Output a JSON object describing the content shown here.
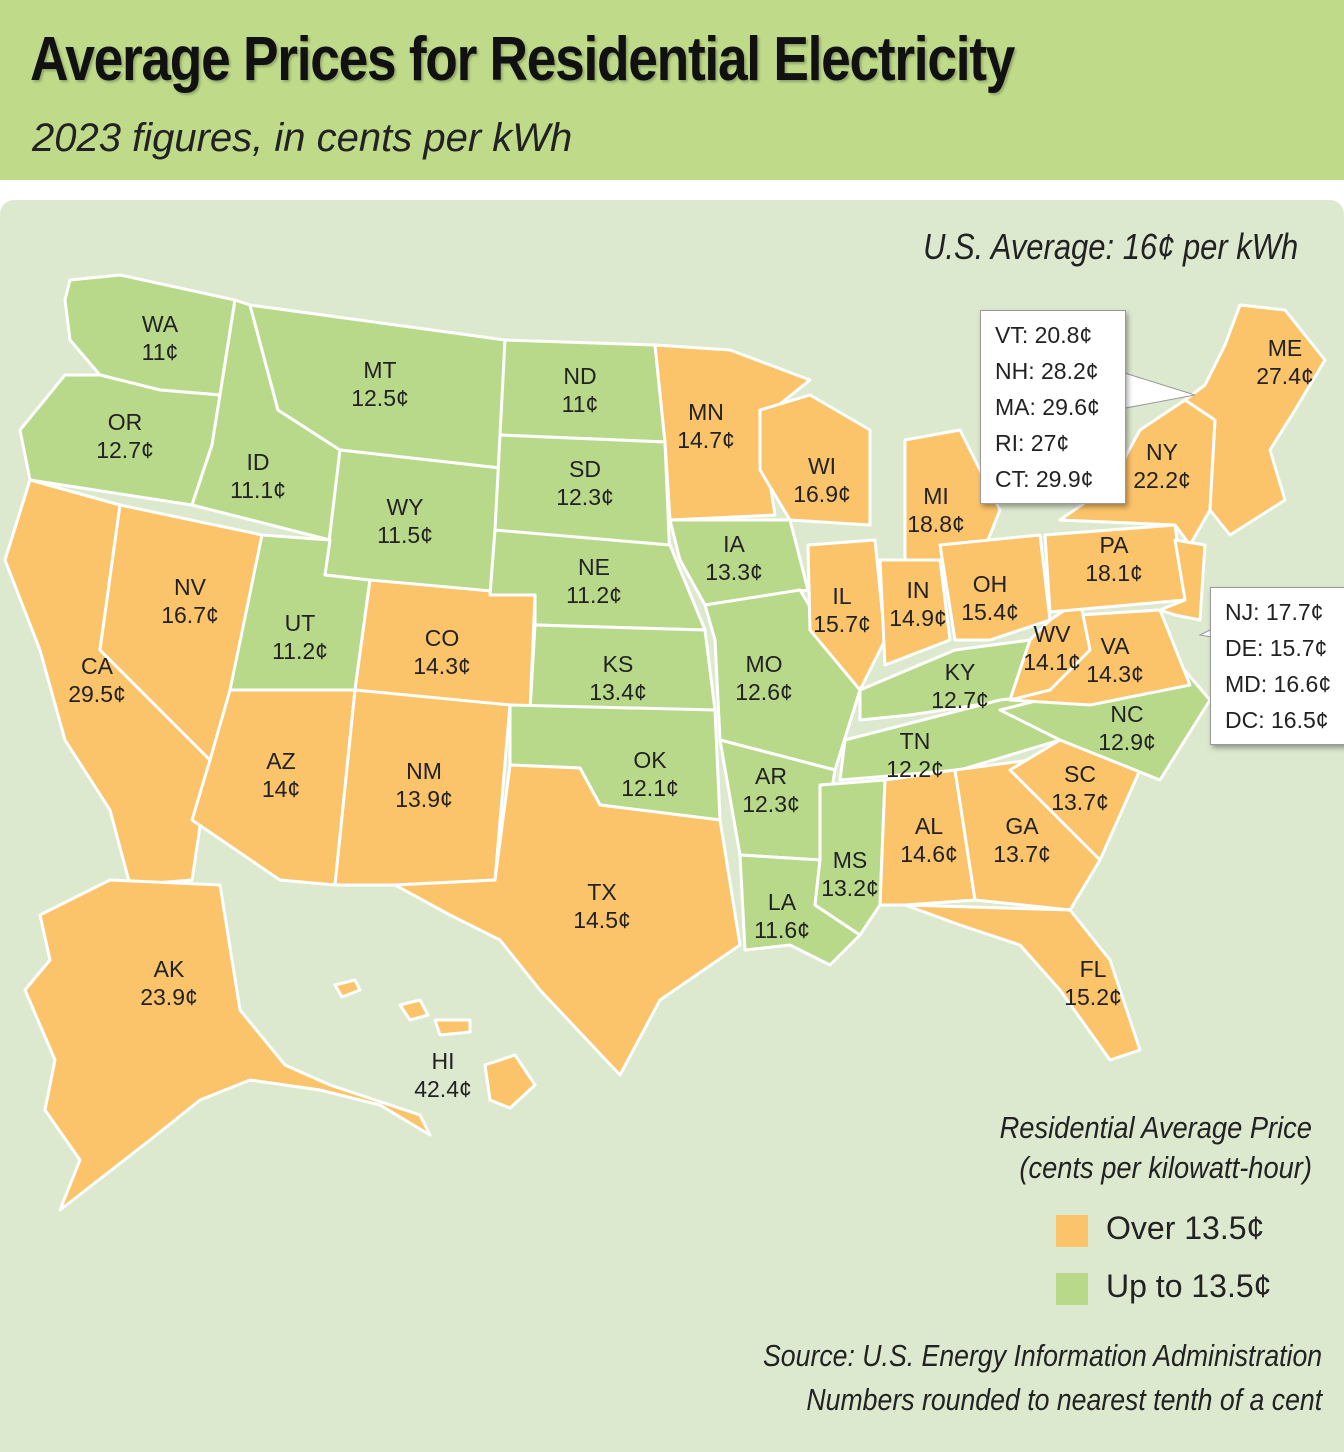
{
  "header": {
    "title": "Average Prices for Residential Electricity",
    "subtitle": "2023 figures, in cents per kWh"
  },
  "us_average": "U.S. Average: 16¢ per kWh",
  "colors": {
    "over": "#fbc36a",
    "up_to": "#b9d98a",
    "header_bg": "#bfdb8a",
    "panel_bg": "#dde9cf"
  },
  "chart_data": {
    "type": "choropleth",
    "unit": "cents per kWh",
    "threshold": 13.5,
    "states": {
      "WA": {
        "label": "WA",
        "price": "11¢"
      },
      "OR": {
        "label": "OR",
        "price": "12.7¢"
      },
      "CA": {
        "label": "CA",
        "price": "29.5¢"
      },
      "NV": {
        "label": "NV",
        "price": "16.7¢"
      },
      "ID": {
        "label": "ID",
        "price": "11.1¢"
      },
      "MT": {
        "label": "MT",
        "price": "12.5¢"
      },
      "WY": {
        "label": "WY",
        "price": "11.5¢"
      },
      "UT": {
        "label": "UT",
        "price": "11.2¢"
      },
      "CO": {
        "label": "CO",
        "price": "14.3¢"
      },
      "AZ": {
        "label": "AZ",
        "price": "14¢"
      },
      "NM": {
        "label": "NM",
        "price": "13.9¢"
      },
      "ND": {
        "label": "ND",
        "price": "11¢"
      },
      "SD": {
        "label": "SD",
        "price": "12.3¢"
      },
      "NE": {
        "label": "NE",
        "price": "11.2¢"
      },
      "KS": {
        "label": "KS",
        "price": "13.4¢"
      },
      "OK": {
        "label": "OK",
        "price": "12.1¢"
      },
      "TX": {
        "label": "TX",
        "price": "14.5¢"
      },
      "MN": {
        "label": "MN",
        "price": "14.7¢"
      },
      "IA": {
        "label": "IA",
        "price": "13.3¢"
      },
      "MO": {
        "label": "MO",
        "price": "12.6¢"
      },
      "AR": {
        "label": "AR",
        "price": "12.3¢"
      },
      "LA": {
        "label": "LA",
        "price": "11.6¢"
      },
      "WI": {
        "label": "WI",
        "price": "16.9¢"
      },
      "IL": {
        "label": "IL",
        "price": "15.7¢"
      },
      "MI": {
        "label": "MI",
        "price": "18.8¢"
      },
      "IN": {
        "label": "IN",
        "price": "14.9¢"
      },
      "OH": {
        "label": "OH",
        "price": "15.4¢"
      },
      "KY": {
        "label": "KY",
        "price": "12.7¢"
      },
      "TN": {
        "label": "TN",
        "price": "12.2¢"
      },
      "MS": {
        "label": "MS",
        "price": "13.2¢"
      },
      "AL": {
        "label": "AL",
        "price": "14.6¢"
      },
      "GA": {
        "label": "GA",
        "price": "13.7¢"
      },
      "FL": {
        "label": "FL",
        "price": "15.2¢"
      },
      "SC": {
        "label": "SC",
        "price": "13.7¢"
      },
      "NC": {
        "label": "NC",
        "price": "12.9¢"
      },
      "VA": {
        "label": "VA",
        "price": "14.3¢"
      },
      "WV": {
        "label": "WV",
        "price": "14.1¢"
      },
      "PA": {
        "label": "PA",
        "price": "18.1¢"
      },
      "NY": {
        "label": "NY",
        "price": "22.2¢"
      },
      "ME": {
        "label": "ME",
        "price": "27.4¢"
      },
      "AK": {
        "label": "AK",
        "price": "23.9¢"
      },
      "HI": {
        "label": "HI",
        "price": "42.4¢"
      }
    },
    "northeast_callout": [
      "VT: 20.8¢",
      "NH: 28.2¢",
      "MA: 29.6¢",
      "RI: 27¢",
      "CT: 29.9¢"
    ],
    "midatlantic_callout": [
      "NJ: 17.7¢",
      "DE: 15.7¢",
      "MD: 16.6¢",
      "DC: 16.5¢"
    ]
  },
  "legend": {
    "title_line1": "Residential Average Price",
    "title_line2": "(cents per kilowatt-hour)",
    "over_label": "Over 13.5¢",
    "up_to_label": "Up to 13.5¢"
  },
  "source": {
    "line1": "Source: U.S. Energy Information Administration",
    "line2": "Numbers rounded to nearest tenth of a cent"
  }
}
